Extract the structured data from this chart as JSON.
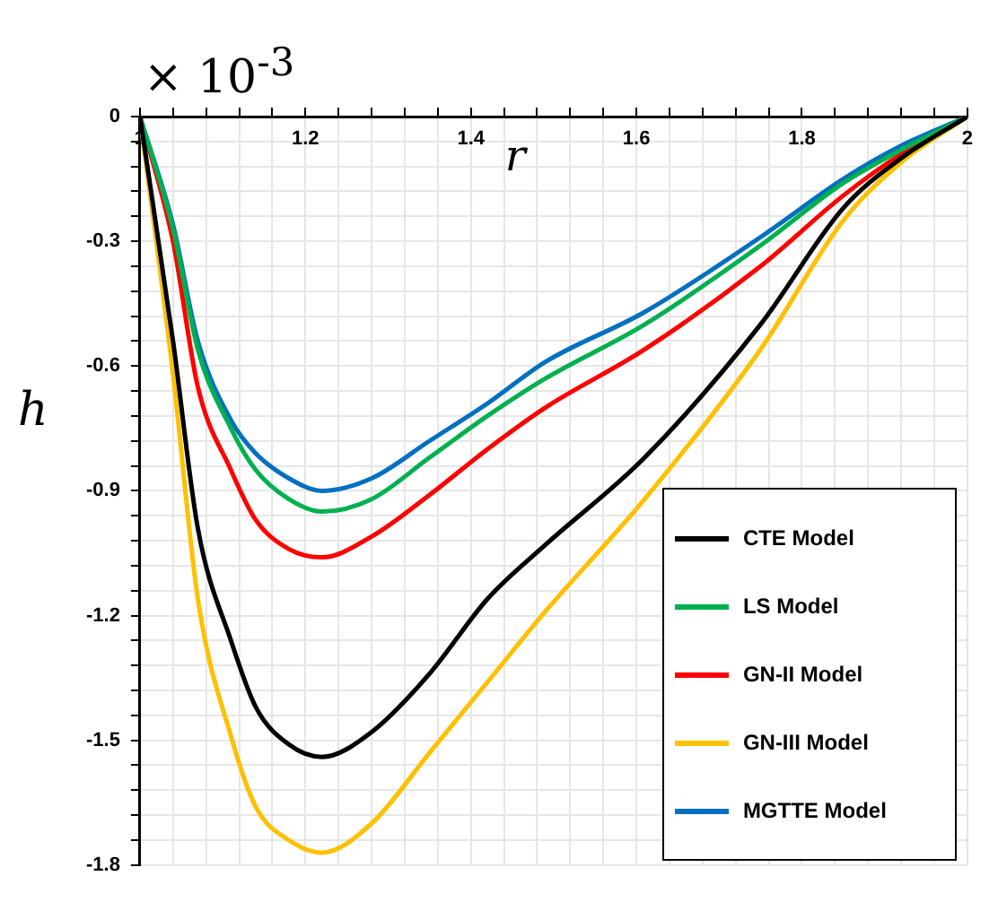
{
  "chart_data": {
    "type": "line",
    "xlabel": "r",
    "ylabel": "h",
    "annotations": [
      "× 10$^{-3}$"
    ],
    "x": [
      1,
      1.04,
      1.07,
      1.11,
      1.14,
      1.18,
      1.22,
      1.28,
      1.35,
      1.42,
      1.49,
      1.61,
      1.75,
      1.85,
      1.92,
      2
    ],
    "series": [
      {
        "name": "CTE Model",
        "color": "#000000",
        "values": [
          0,
          -0.54,
          -0.99,
          -1.26,
          -1.42,
          -1.51,
          -1.54,
          -1.48,
          -1.34,
          -1.16,
          -1.03,
          -0.82,
          -0.5,
          -0.22,
          -0.1,
          0
        ]
      },
      {
        "name": "LS Model",
        "color": "#00b050",
        "values": [
          0,
          -0.27,
          -0.56,
          -0.75,
          -0.85,
          -0.92,
          -0.95,
          -0.92,
          -0.82,
          -0.72,
          -0.63,
          -0.5,
          -0.31,
          -0.16,
          -0.08,
          0
        ]
      },
      {
        "name": "GN-II Model",
        "color": "#ff0000",
        "values": [
          0,
          -0.3,
          -0.65,
          -0.85,
          -0.97,
          -1.04,
          -1.06,
          -1.01,
          -0.91,
          -0.8,
          -0.7,
          -0.56,
          -0.36,
          -0.19,
          -0.09,
          0
        ]
      },
      {
        "name": "GN-III Model",
        "color": "#ffc000",
        "values": [
          0,
          -0.62,
          -1.16,
          -1.49,
          -1.66,
          -1.74,
          -1.77,
          -1.7,
          -1.53,
          -1.36,
          -1.19,
          -0.92,
          -0.56,
          -0.25,
          -0.11,
          0
        ]
      },
      {
        "name": "MGTTE Model",
        "color": "#0070c0",
        "values": [
          0,
          -0.26,
          -0.54,
          -0.73,
          -0.81,
          -0.87,
          -0.9,
          -0.87,
          -0.78,
          -0.69,
          -0.59,
          -0.47,
          -0.29,
          -0.15,
          -0.07,
          0
        ]
      }
    ],
    "xlim": [
      1,
      2
    ],
    "xticks": [
      1,
      {
        "value": 1.04,
        "label": null
      },
      {
        "value": 1.08,
        "label": null
      },
      {
        "value": 1.12,
        "label": null
      },
      {
        "value": 1.16,
        "label": null
      },
      1.2,
      {
        "value": 1.24,
        "label": null
      },
      {
        "value": 1.28,
        "label": null
      },
      {
        "value": 1.32,
        "label": null
      },
      {
        "value": 1.36,
        "label": null
      },
      1.4,
      {
        "value": 1.44,
        "label": null
      },
      {
        "value": 1.48,
        "label": null
      },
      {
        "value": 1.52,
        "label": null
      },
      {
        "value": 1.56,
        "label": null
      },
      1.6,
      {
        "value": 1.64,
        "label": null
      },
      {
        "value": 1.68,
        "label": null
      },
      {
        "value": 1.72,
        "label": null
      },
      {
        "value": 1.76,
        "label": null
      },
      1.8,
      {
        "value": 1.84,
        "label": null
      },
      {
        "value": 1.88,
        "label": null
      },
      {
        "value": 1.92,
        "label": null
      },
      {
        "value": 1.96,
        "label": null
      },
      2
    ],
    "ylim": [
      -1.8,
      0
    ],
    "yticks": [
      0,
      {
        "value": -0.06,
        "label": null
      },
      {
        "value": -0.12,
        "label": null
      },
      {
        "value": -0.18,
        "label": null
      },
      {
        "value": -0.24,
        "label": null
      },
      -0.3,
      {
        "value": -0.36,
        "label": null
      },
      {
        "value": -0.42,
        "label": null
      },
      {
        "value": -0.48,
        "label": null
      },
      {
        "value": -0.54,
        "label": null
      },
      -0.6,
      {
        "value": -0.66,
        "label": null
      },
      {
        "value": -0.72,
        "label": null
      },
      {
        "value": -0.78,
        "label": null
      },
      {
        "value": -0.84,
        "label": null
      },
      -0.9,
      {
        "value": -0.96,
        "label": null
      },
      {
        "value": -1.02,
        "label": null
      },
      {
        "value": -1.08,
        "label": null
      },
      {
        "value": -1.14,
        "label": null
      },
      -1.2,
      {
        "value": -1.26,
        "label": null
      },
      {
        "value": -1.32,
        "label": null
      },
      {
        "value": -1.38,
        "label": null
      },
      {
        "value": -1.44,
        "label": null
      },
      -1.5,
      {
        "value": -1.56,
        "label": null
      },
      {
        "value": -1.62,
        "label": null
      },
      {
        "value": -1.68,
        "label": null
      },
      {
        "value": -1.74,
        "label": null
      },
      -1.8
    ],
    "grid": true,
    "legend": "bottom right",
    "marker": "none",
    "line_style": "solid"
  }
}
